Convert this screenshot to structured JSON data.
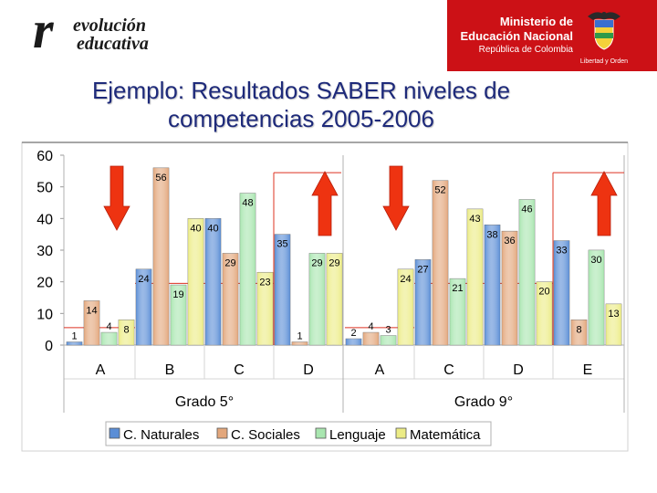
{
  "header": {
    "logo_re": "r",
    "logo_line1": "evolución",
    "logo_line2": "educativa",
    "ministry_line1": "Ministerio de",
    "ministry_line2": "Educación Nacional",
    "ministry_line3": "República de Colombia",
    "crest_caption": "Libertad y Orden"
  },
  "slide": {
    "title_line1": "Ejemplo: Resultados SABER niveles de",
    "title_line2": "competencias 2005-2006"
  },
  "colors": {
    "brand_red": "#cc1116",
    "title_blue": "#1e2a7a",
    "arrow_red": "#ee3311",
    "reference_line": "#dd3322"
  },
  "chart_data": {
    "type": "bar",
    "ylim": [
      0,
      60
    ],
    "yticks": [
      0,
      10,
      20,
      30,
      40,
      50,
      60
    ],
    "grid": false,
    "legend_position": "bottom",
    "series": [
      {
        "name": "C. Naturales",
        "color": "#5b8ed6"
      },
      {
        "name": "C. Sociales",
        "color": "#e3a77c"
      },
      {
        "name": "Lenguaje",
        "color": "#a9e6b0"
      },
      {
        "name": "Matemática",
        "color": "#ecec86"
      }
    ],
    "groups": [
      {
        "name": "Grado 5°",
        "categories": [
          "A",
          "B",
          "C",
          "D"
        ],
        "values": [
          [
            1,
            14,
            4,
            8
          ],
          [
            24,
            56,
            19,
            40
          ],
          [
            40,
            29,
            48,
            23
          ],
          [
            35,
            1,
            29,
            29
          ]
        ],
        "arrows": [
          {
            "category_index": 0,
            "direction": "down"
          },
          {
            "category_index": 3,
            "direction": "up"
          }
        ]
      },
      {
        "name": "Grado 9°",
        "categories": [
          "A",
          "C",
          "D",
          "E"
        ],
        "values": [
          [
            2,
            4,
            3,
            24
          ],
          [
            27,
            52,
            21,
            43
          ],
          [
            38,
            36,
            46,
            20
          ],
          [
            33,
            8,
            30,
            13
          ]
        ],
        "arrows": [
          {
            "category_index": 0,
            "direction": "down"
          },
          {
            "category_index": 3,
            "direction": "up"
          }
        ]
      }
    ]
  }
}
